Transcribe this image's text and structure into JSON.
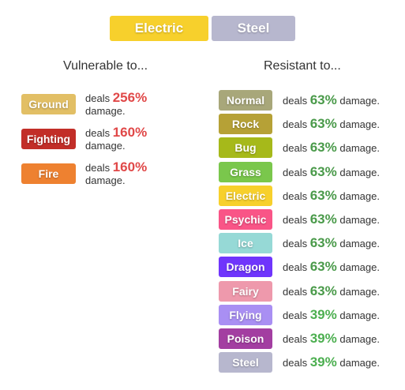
{
  "header": {
    "types": [
      {
        "label": "Electric",
        "color": "#f7d02c"
      },
      {
        "label": "Steel",
        "color": "#b7b7ce"
      }
    ]
  },
  "vulnerable": {
    "title": "Vulnerable to...",
    "deals_label": "deals",
    "damage_label": "damage.",
    "items": [
      {
        "type": "Ground",
        "color": "#e2bf65",
        "pct": "256%"
      },
      {
        "type": "Fighting",
        "color": "#c22e28",
        "pct": "160%"
      },
      {
        "type": "Fire",
        "color": "#ee8130",
        "pct": "160%"
      }
    ]
  },
  "resistant": {
    "title": "Resistant to...",
    "deals_label": "deals",
    "damage_label": "damage.",
    "items": [
      {
        "type": "Normal",
        "color": "#a8a77a",
        "pct": "63%"
      },
      {
        "type": "Rock",
        "color": "#b6a136",
        "pct": "63%"
      },
      {
        "type": "Bug",
        "color": "#a6b91a",
        "pct": "63%"
      },
      {
        "type": "Grass",
        "color": "#7ac74c",
        "pct": "63%"
      },
      {
        "type": "Electric",
        "color": "#f7d02c",
        "pct": "63%"
      },
      {
        "type": "Psychic",
        "color": "#f95587",
        "pct": "63%"
      },
      {
        "type": "Ice",
        "color": "#96d9d6",
        "pct": "63%"
      },
      {
        "type": "Dragon",
        "color": "#6f35fc",
        "pct": "63%"
      },
      {
        "type": "Fairy",
        "color": "#ee99ac",
        "pct": "63%"
      },
      {
        "type": "Flying",
        "color": "#a98ff3",
        "pct": "39%"
      },
      {
        "type": "Poison",
        "color": "#a33ea1",
        "pct": "39%"
      },
      {
        "type": "Steel",
        "color": "#b7b7ce",
        "pct": "39%"
      }
    ]
  }
}
